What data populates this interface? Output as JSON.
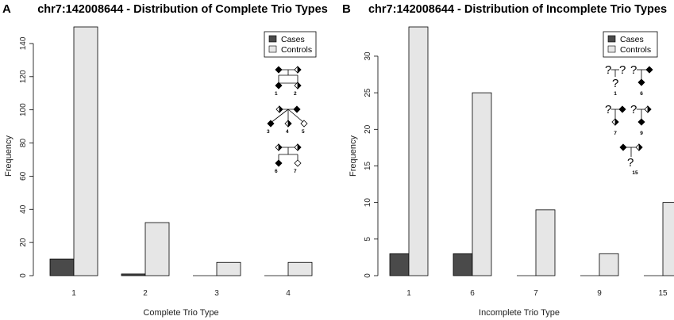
{
  "chart_data": [
    {
      "type": "bar",
      "panel_letter": "A",
      "title": "chr7:142008644 - Distribution of Complete Trio Types",
      "xlabel": "Complete Trio Type",
      "ylabel": "Frequency",
      "categories": [
        "1",
        "2",
        "3",
        "4"
      ],
      "series": [
        {
          "name": "Cases",
          "color": "#4a4a4a",
          "values": [
            10,
            1,
            0,
            0
          ]
        },
        {
          "name": "Controls",
          "color": "#e6e6e6",
          "values": [
            150,
            32,
            8,
            8
          ]
        }
      ],
      "ylim": [
        0,
        150
      ],
      "yticks": [
        0,
        20,
        40,
        60,
        80,
        100,
        120,
        140
      ],
      "grid": false,
      "legend": "top-right",
      "pedigree_labels": [
        "1",
        "2",
        "3",
        "4",
        "5",
        "6",
        "7"
      ]
    },
    {
      "type": "bar",
      "panel_letter": "B",
      "title": "chr7:142008644 - Distribution of Incomplete Trio Types",
      "xlabel": "Incomplete Trio Type",
      "ylabel": "Frequency",
      "categories": [
        "1",
        "6",
        "7",
        "9",
        "15"
      ],
      "series": [
        {
          "name": "Cases",
          "color": "#4a4a4a",
          "values": [
            3,
            3,
            0,
            0,
            0
          ]
        },
        {
          "name": "Controls",
          "color": "#e6e6e6",
          "values": [
            34,
            25,
            9,
            3,
            10
          ]
        }
      ],
      "ylim": [
        0,
        34
      ],
      "yticks": [
        0,
        5,
        10,
        15,
        20,
        25,
        30
      ],
      "grid": false,
      "legend": "top-right",
      "pedigree_labels": [
        "1",
        "6",
        "7",
        "9",
        "15"
      ],
      "pedigree_unknown_mark": "?"
    }
  ]
}
